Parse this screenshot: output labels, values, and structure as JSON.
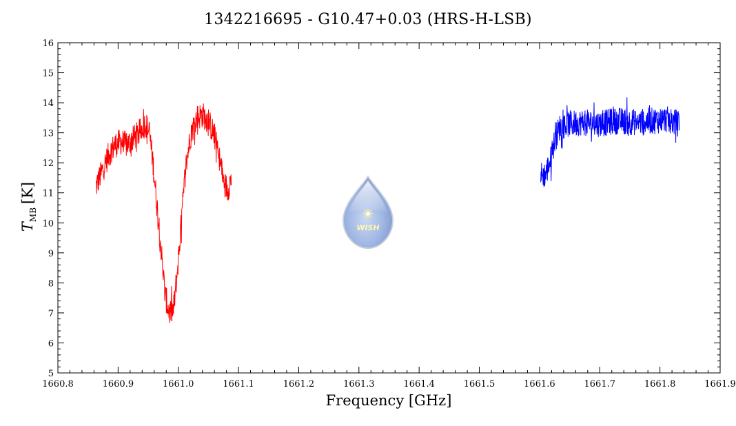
{
  "chart_data": {
    "type": "line",
    "title": "1342216695 - G10.47+0.03 (HRS-H-LSB)",
    "xlabel": "Frequency [GHz]",
    "ylabel_main": "T",
    "ylabel_sub": "MB",
    "ylabel_unit": "[K]",
    "xlim": [
      1660.8,
      1661.9
    ],
    "ylim": [
      5,
      16
    ],
    "xticks": [
      "1660.8",
      "1660.9",
      "1661.0",
      "1661.1",
      "1661.2",
      "1661.3",
      "1661.4",
      "1661.5",
      "1661.6",
      "1661.7",
      "1661.8",
      "1661.9"
    ],
    "yticks": [
      "5",
      "6",
      "7",
      "8",
      "9",
      "10",
      "11",
      "12",
      "13",
      "14",
      "15",
      "16"
    ],
    "grid": false,
    "logo_text": "WISH",
    "series": [
      {
        "color": "#ff0000",
        "x_range": [
          1660.863,
          1661.088
        ],
        "envelope": [
          [
            1660.863,
            11.2
          ],
          [
            1660.875,
            11.8
          ],
          [
            1660.885,
            12.3
          ],
          [
            1660.895,
            12.6
          ],
          [
            1660.905,
            12.7
          ],
          [
            1660.915,
            12.6
          ],
          [
            1660.925,
            12.8
          ],
          [
            1660.935,
            13.0
          ],
          [
            1660.945,
            13.3
          ],
          [
            1660.952,
            13.0
          ],
          [
            1660.958,
            12.0
          ],
          [
            1660.965,
            10.5
          ],
          [
            1660.972,
            9.0
          ],
          [
            1660.978,
            7.6
          ],
          [
            1660.985,
            7.0
          ],
          [
            1660.992,
            7.1
          ],
          [
            1660.998,
            8.3
          ],
          [
            1661.005,
            10.0
          ],
          [
            1661.012,
            11.8
          ],
          [
            1661.02,
            12.9
          ],
          [
            1661.03,
            13.5
          ],
          [
            1661.04,
            13.6
          ],
          [
            1661.05,
            13.4
          ],
          [
            1661.06,
            12.9
          ],
          [
            1661.068,
            12.2
          ],
          [
            1661.075,
            11.4
          ],
          [
            1661.082,
            11.1
          ],
          [
            1661.088,
            11.5
          ]
        ],
        "noise": 0.45
      },
      {
        "color": "#0000ff",
        "x_range": [
          1661.602,
          1661.832
        ],
        "envelope": [
          [
            1661.602,
            11.6
          ],
          [
            1661.61,
            11.6
          ],
          [
            1661.618,
            12.1
          ],
          [
            1661.626,
            12.8
          ],
          [
            1661.634,
            13.2
          ],
          [
            1661.65,
            13.3
          ],
          [
            1661.67,
            13.35
          ],
          [
            1661.7,
            13.3
          ],
          [
            1661.73,
            13.4
          ],
          [
            1661.76,
            13.35
          ],
          [
            1661.79,
            13.4
          ],
          [
            1661.81,
            13.45
          ],
          [
            1661.832,
            13.3
          ]
        ],
        "noise": 0.45
      }
    ]
  }
}
